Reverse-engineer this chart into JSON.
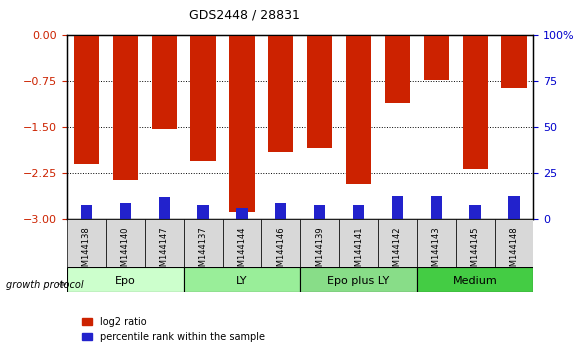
{
  "title": "GDS2448 / 28831",
  "samples": [
    "GSM144138",
    "GSM144140",
    "GSM144147",
    "GSM144137",
    "GSM144144",
    "GSM144146",
    "GSM144139",
    "GSM144141",
    "GSM144142",
    "GSM144143",
    "GSM144145",
    "GSM144148"
  ],
  "log2_ratio": [
    -2.1,
    -2.35,
    -1.52,
    -2.05,
    -2.87,
    -1.9,
    -1.83,
    -2.42,
    -1.1,
    -0.72,
    -2.18,
    -0.85
  ],
  "pct_rank": [
    8,
    9,
    12,
    8,
    6,
    9,
    8,
    8,
    13,
    13,
    8,
    13
  ],
  "groups": [
    {
      "label": "Epo",
      "color": "#ccffcc",
      "start": 0,
      "end": 3
    },
    {
      "label": "LY",
      "color": "#99ee99",
      "start": 3,
      "end": 6
    },
    {
      "label": "Epo plus LY",
      "color": "#88dd88",
      "start": 6,
      "end": 9
    },
    {
      "label": "Medium",
      "color": "#44cc44",
      "start": 9,
      "end": 12
    }
  ],
  "ylim_left": [
    -3,
    0
  ],
  "ylim_right": [
    0,
    100
  ],
  "yticks_left": [
    -3,
    -2.25,
    -1.5,
    -0.75,
    0
  ],
  "yticks_right": [
    0,
    25,
    50,
    75,
    100
  ],
  "bar_color_red": "#cc2200",
  "bar_color_blue": "#2222cc",
  "bar_width": 0.65,
  "xlabel_color": "#cc2200",
  "ylabel_right_color": "#0000cc",
  "growth_protocol_label": "growth protocol"
}
